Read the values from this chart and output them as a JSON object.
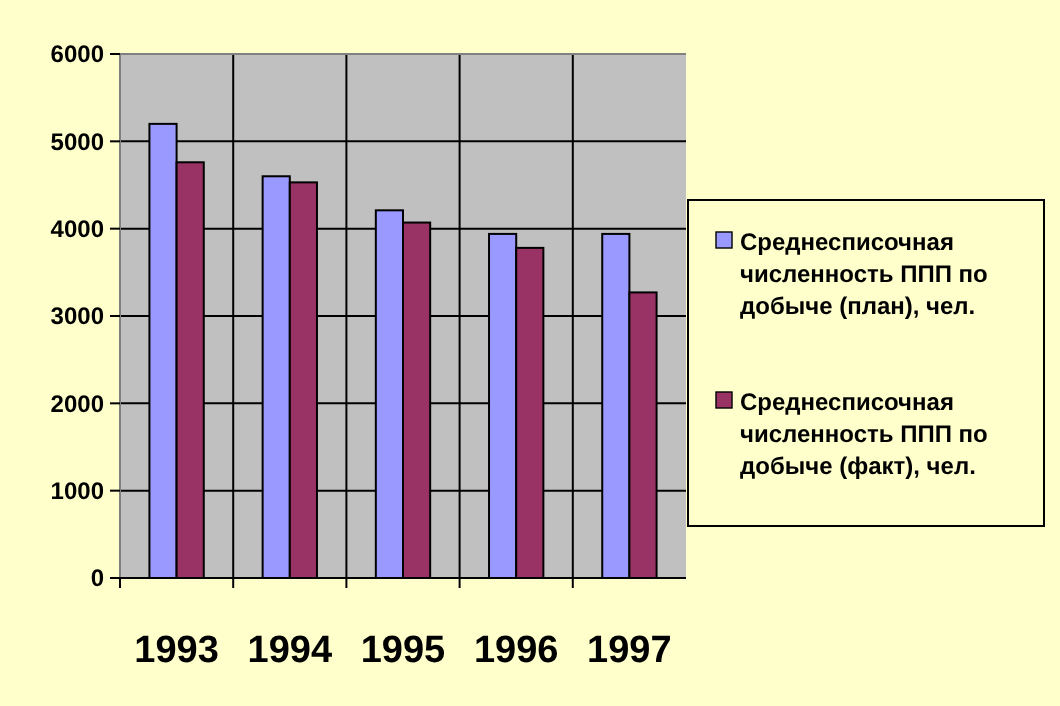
{
  "chart_data": {
    "type": "bar",
    "categories": [
      "1993",
      "1994",
      "1995",
      "1996",
      "1997"
    ],
    "series": [
      {
        "name": "Среднесписочная численность ППП по добыче (план), чел.",
        "color": "#9999ff",
        "values": [
          5200,
          4600,
          4210,
          3940,
          3940
        ]
      },
      {
        "name": "Среднесписочная численность ППП по добыче (факт), чел.",
        "color": "#993366",
        "values": [
          4760,
          4530,
          4070,
          3780,
          3270
        ]
      }
    ],
    "ylim": [
      0,
      6000
    ],
    "yticks": [
      0,
      1000,
      2000,
      3000,
      4000,
      5000,
      6000
    ],
    "grid": true,
    "legend": "right"
  }
}
